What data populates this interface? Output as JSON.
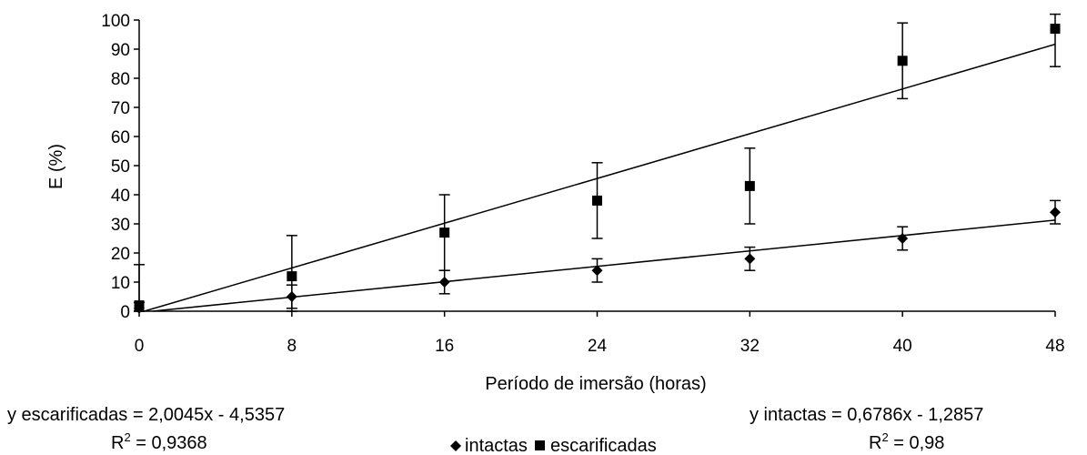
{
  "chart_data": {
    "type": "scatter",
    "title": "",
    "xlabel": "Período de imersão (horas)",
    "ylabel": "E (%)",
    "xlim": [
      0,
      48
    ],
    "ylim": [
      0,
      100
    ],
    "xticks": [
      "0",
      "8",
      "16",
      "24",
      "32",
      "40",
      "48"
    ],
    "yticks": [
      "0",
      "10",
      "20",
      "30",
      "40",
      "50",
      "60",
      "70",
      "80",
      "90",
      "100"
    ],
    "grid": false,
    "legend_position": "bottom",
    "x": [
      0,
      8,
      16,
      24,
      32,
      40,
      48
    ],
    "series": [
      {
        "name": "intactas",
        "marker": "diamond",
        "values": [
          1,
          5,
          10,
          14,
          18,
          25,
          34
        ],
        "error": [
          2,
          4,
          4,
          4,
          4,
          4,
          4
        ],
        "trendline": {
          "slope": 0.6786,
          "intercept": -1.2857
        },
        "equation": "y intactas = 0,6786x - 1,2857",
        "r2_label": "R",
        "r2_exp": "2",
        "r2_value": " = 0,98"
      },
      {
        "name": "escarificadas",
        "marker": "square",
        "values": [
          2,
          12,
          27,
          38,
          43,
          86,
          97
        ],
        "error": [
          14,
          14,
          13,
          13,
          13,
          13,
          13
        ],
        "trendline": {
          "slope": 2.0045,
          "intercept": -4.5357
        },
        "equation": "y escarificadas = 2,0045x - 4,5357",
        "r2_label": "R",
        "r2_exp": "2",
        "r2_value": " = 0,9368"
      }
    ],
    "colors": {
      "marks": "#000000",
      "background": "#ffffff"
    }
  }
}
